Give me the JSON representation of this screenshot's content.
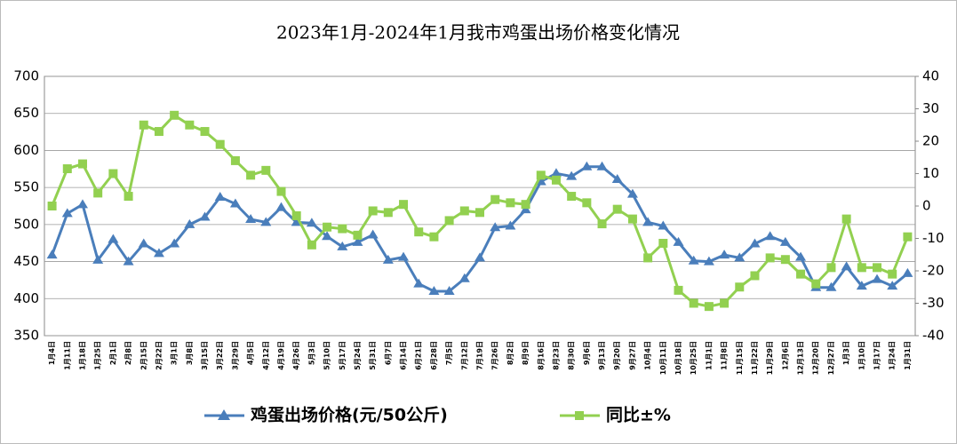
{
  "chart_data": {
    "type": "line",
    "title": "2023年1月-2024年1月我市鸡蛋出场价格变化情况",
    "categories": [
      "1月4日",
      "1月11日",
      "1月18日",
      "1月25日",
      "2月1日",
      "2月8日",
      "2月15日",
      "2月22日",
      "3月1日",
      "3月8日",
      "3月15日",
      "3月22日",
      "3月29日",
      "4月5日",
      "4月12日",
      "4月19日",
      "4月26日",
      "5月3日",
      "5月10日",
      "5月17日",
      "5月24日",
      "5月31日",
      "6月7日",
      "6月14日",
      "6月21日",
      "6月28日",
      "7月5日",
      "7月12日",
      "7月19日",
      "7月26日",
      "8月2日",
      "8月9日",
      "8月16日",
      "8月23日",
      "8月30日",
      "9月6日",
      "9月13日",
      "9月20日",
      "9月27日",
      "10月4日",
      "10月11日",
      "10月18日",
      "10月25日",
      "11月1日",
      "11月8日",
      "11月15日",
      "11月22日",
      "11月29日",
      "12月6日",
      "12月13日",
      "12月20日",
      "12月27日",
      "1月3日",
      "1月10日",
      "1月17日",
      "1月24日",
      "1月31日"
    ],
    "series": [
      {
        "name": "鸡蛋出场价格(元/50公斤)",
        "color": "#4a7ebb",
        "marker": "triangle",
        "values": [
          459,
          515,
          527,
          452,
          480,
          450,
          474,
          461,
          474,
          500,
          510,
          537,
          528,
          507,
          503,
          523,
          503,
          502,
          484,
          470,
          476,
          486,
          452,
          456,
          420,
          410,
          410,
          427,
          455,
          496,
          498,
          520,
          558,
          569,
          565,
          578,
          578,
          561,
          541,
          503,
          498,
          476,
          451,
          450,
          459,
          455,
          474,
          484,
          476,
          456,
          415,
          415,
          443,
          417,
          426,
          417,
          434
        ]
      },
      {
        "name": "同比±%",
        "color": "#92d050",
        "marker": "square",
        "axis": "y2",
        "values": [
          0,
          11.5,
          13,
          4,
          10,
          3,
          25,
          23,
          28,
          25,
          23,
          19,
          14,
          9.5,
          11,
          4.5,
          -3,
          -12,
          -6.5,
          -7,
          -9,
          -1.5,
          -2,
          0.5,
          -8,
          -9.5,
          -4.5,
          -1.5,
          -2,
          2,
          1,
          0.5,
          9.5,
          8,
          3,
          1,
          -5.5,
          -1,
          -4,
          -16,
          -11.5,
          -26,
          -30,
          -31,
          -30,
          -25,
          -21.5,
          -16,
          -16.5,
          -21,
          -24,
          -19,
          -4,
          -19,
          -19,
          -21,
          -9.5
        ]
      }
    ],
    "ylim": [
      350,
      700
    ],
    "yticks": [
      350,
      400,
      450,
      500,
      550,
      600,
      650,
      700
    ],
    "y2lim": [
      -40,
      40
    ],
    "y2ticks": [
      -40,
      -30,
      -20,
      -10,
      0,
      10,
      20,
      30,
      40
    ],
    "grid": true,
    "legend": "bottom"
  }
}
